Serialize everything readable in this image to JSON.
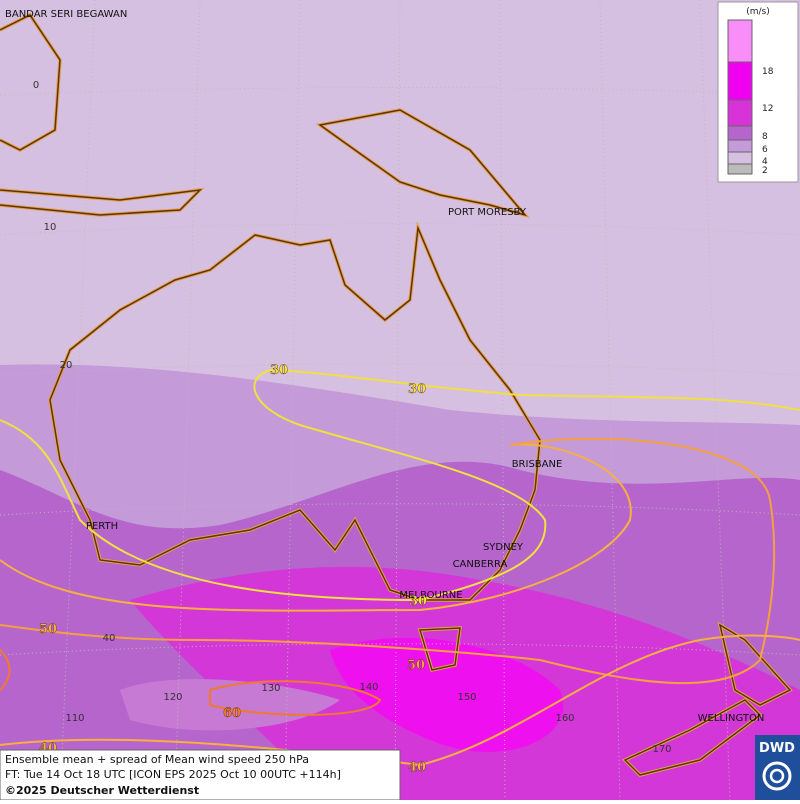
{
  "cities": [
    "BANDAR SERI BEGAWAN",
    "PORT MORESBY",
    "BRISBANE",
    "PERTH",
    "SYDNEY",
    "CANBERRA",
    "MELBOURNE",
    "WELLINGTON"
  ],
  "latitudes": [
    0,
    10,
    20,
    40
  ],
  "longitudes": [
    110,
    120,
    130,
    140,
    150,
    160,
    170
  ],
  "contour_labels": [
    30,
    30,
    30,
    50,
    50,
    60,
    40,
    40
  ],
  "legend": {
    "unit": "(m/s)",
    "levels": [
      2,
      4,
      6,
      8,
      12,
      18
    ]
  },
  "caption": {
    "line1": "Ensemble mean + spread of Mean wind speed 250 hPa",
    "line2": "FT: Tue 14 Oct 18 UTC [ICON EPS 2025 Oct 10 00UTC +114h]",
    "line3": "©2025 Deutscher Wetterdienst"
  },
  "logo": "DWD"
}
